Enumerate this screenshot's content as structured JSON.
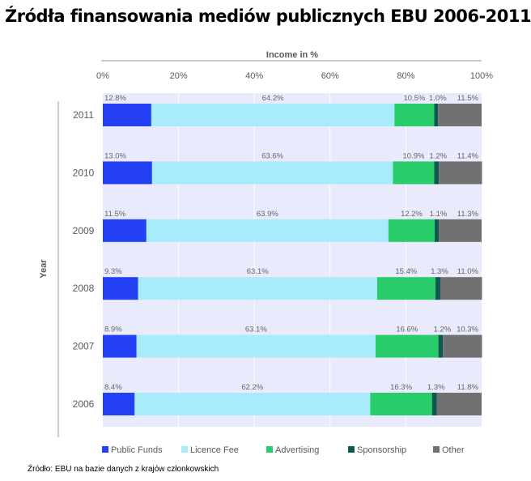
{
  "chart_data": {
    "type": "bar",
    "orientation": "horizontal",
    "stacked": true,
    "title": "Źródła finansowania mediów publicznych EBU 2006-2011",
    "xlabel": "Income in %",
    "ylabel": "Year",
    "xlim": [
      0,
      100
    ],
    "xticks": [
      "0%",
      "20%",
      "40%",
      "60%",
      "80%",
      "100%"
    ],
    "grid": true,
    "legend": "bottom",
    "categories": [
      "2011",
      "2010",
      "2009",
      "2008",
      "2007",
      "2006"
    ],
    "series": [
      {
        "name": "Public Funds",
        "color": "#2440f5",
        "values": [
          12.8,
          13.0,
          11.5,
          9.3,
          8.9,
          8.4
        ]
      },
      {
        "name": "Licence Fee",
        "color": "#a8ecfb",
        "values": [
          64.2,
          63.6,
          63.9,
          63.1,
          63.1,
          62.2
        ]
      },
      {
        "name": "Advertising",
        "color": "#28cc68",
        "values": [
          10.5,
          10.9,
          12.2,
          15.4,
          16.6,
          16.3
        ]
      },
      {
        "name": "Sponsorship",
        "color": "#0b5a50",
        "values": [
          1.0,
          1.2,
          1.1,
          1.3,
          1.2,
          1.3
        ]
      },
      {
        "name": "Other",
        "color": "#717171",
        "values": [
          11.5,
          11.4,
          11.3,
          11.0,
          10.3,
          11.8
        ]
      }
    ],
    "source": "Źródło: EBU na bazie danych z krajów członkowskich"
  }
}
